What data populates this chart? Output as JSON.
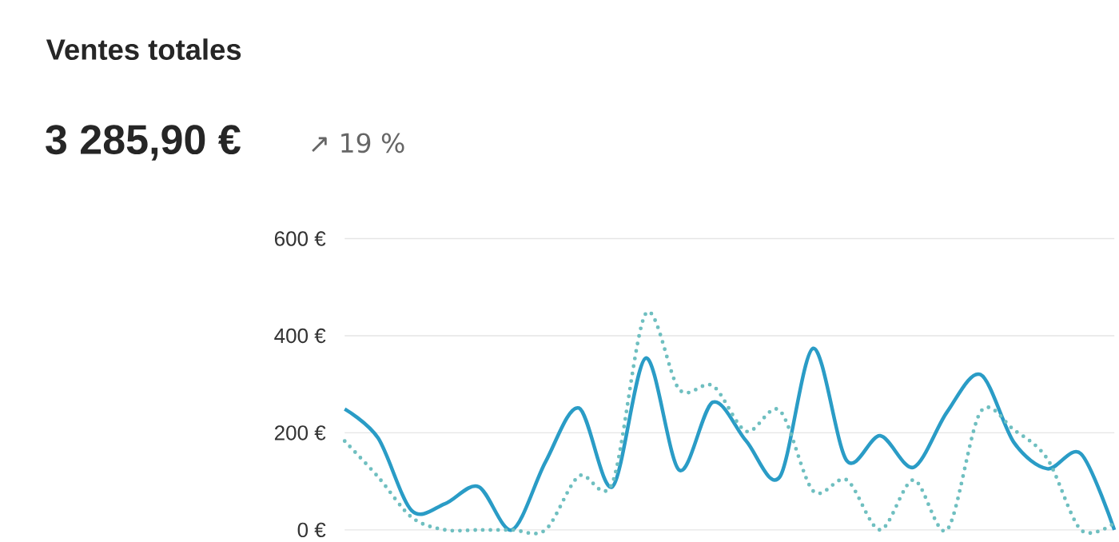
{
  "chart_data": {
    "type": "line",
    "title": "Ventes totales",
    "subtitle": "3 285,90 €",
    "annotations": [
      "↗ 19 %"
    ],
    "categories": [
      null,
      null,
      null,
      null,
      null,
      null,
      null,
      null,
      null,
      null,
      null,
      null,
      null,
      null,
      null,
      null,
      null,
      null,
      null,
      null,
      null,
      null,
      null,
      null
    ],
    "series": [
      {
        "color": "#2a9cc6",
        "line_style": "solid",
        "values": [
          249,
          189,
          40,
          54,
          89,
          0,
          140,
          251,
          89,
          354,
          123,
          263,
          183,
          109,
          374,
          143,
          194,
          129,
          243,
          320,
          180,
          126,
          157,
          0
        ]
      },
      {
        "color": "#6fbfc0",
        "line_style": "dotted",
        "values": [
          183,
          109,
          26,
          0,
          0,
          0,
          0,
          111,
          97,
          446,
          289,
          297,
          203,
          246,
          80,
          103,
          0,
          103,
          0,
          243,
          206,
          146,
          0,
          14
        ]
      }
    ],
    "ylim": [
      0,
      600
    ],
    "yticks": [
      {
        "value": 0,
        "label": "0 €"
      },
      {
        "value": 200,
        "label": "200 €"
      },
      {
        "value": 400,
        "label": "400 €"
      },
      {
        "value": 600,
        "label": "600 €"
      }
    ],
    "grid": "y",
    "tick_labels": "y"
  }
}
